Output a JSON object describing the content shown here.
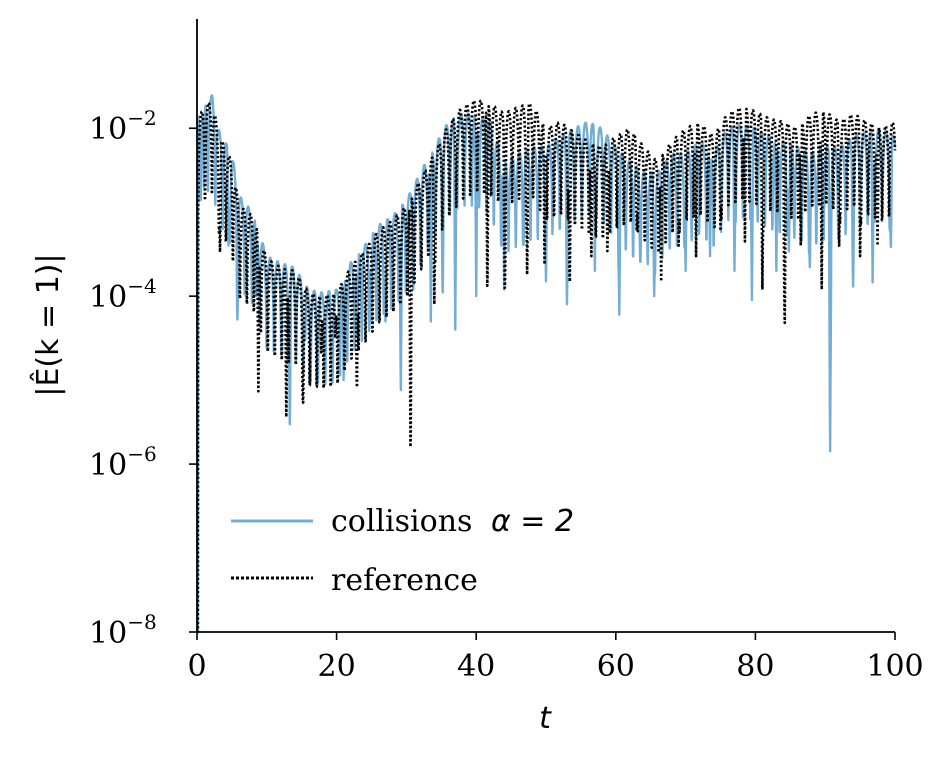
{
  "chart_data": {
    "type": "line",
    "xlabel": "t",
    "ylabel": "|Ê(k = 1)|",
    "xlim": [
      0,
      100
    ],
    "ylim": [
      1e-08,
      0.2
    ],
    "yscale": "log",
    "grid": false,
    "legend_position": "lower-left",
    "x_ticks": [
      0,
      20,
      40,
      60,
      80,
      100
    ],
    "x_tick_labels": [
      "0",
      "20",
      "40",
      "60",
      "80",
      "100"
    ],
    "y_ticks": [
      1e-08,
      1e-06,
      0.0001,
      0.01
    ],
    "y_tick_labels": [
      {
        "base": "10",
        "exp": "−8"
      },
      {
        "base": "10",
        "exp": "−6"
      },
      {
        "base": "10",
        "exp": "−4"
      },
      {
        "base": "10",
        "exp": "−2"
      }
    ],
    "series": [
      {
        "name": "collisions α = 2",
        "legend_text": "collisions",
        "legend_math": "α = 2",
        "color": "#74aed4",
        "style": "solid",
        "envelope_t": [
          0,
          1,
          2.2,
          3,
          4,
          5,
          6,
          8,
          10,
          12,
          14,
          16,
          18,
          20,
          22,
          24,
          26,
          28,
          30,
          32,
          34,
          36,
          38,
          40,
          42,
          44,
          46,
          48,
          50,
          52,
          54,
          56,
          58,
          60,
          62,
          64,
          66,
          68,
          70,
          72,
          74,
          76,
          78,
          80,
          82,
          84,
          86,
          88,
          90,
          92,
          94,
          96,
          98,
          100
        ],
        "envelope_max": [
          0.015,
          0.02,
          0.025,
          0.01,
          0.007,
          0.005,
          0.0016,
          0.001,
          0.0003,
          0.00025,
          0.00022,
          0.00012,
          0.00011,
          0.00012,
          0.00025,
          0.0004,
          0.0007,
          0.0009,
          0.0014,
          0.003,
          0.006,
          0.012,
          0.015,
          0.015,
          0.012,
          0.004,
          0.005,
          0.006,
          0.006,
          0.008,
          0.01,
          0.012,
          0.01,
          0.006,
          0.004,
          0.003,
          0.003,
          0.005,
          0.005,
          0.007,
          0.005,
          0.01,
          0.011,
          0.01,
          0.008,
          0.007,
          0.006,
          0.005,
          0.006,
          0.006,
          0.008,
          0.009,
          0.01,
          0.008
        ],
        "dips_t": [
          1,
          4.5,
          5.8,
          8.5,
          11,
          13.3,
          15.5,
          17.2,
          19.2,
          21,
          23,
          25,
          27,
          29.2,
          31,
          33.5,
          35.2,
          37,
          40,
          44,
          46.8,
          50,
          53,
          57,
          60.5,
          63.5,
          65.5,
          70,
          73.5,
          77,
          79.5,
          83,
          84.8,
          87.8,
          90.7,
          94,
          96.8,
          99.4
        ],
        "dips_y": [
          0.002,
          0.0004,
          5e-05,
          0.0001,
          8e-05,
          2.5e-06,
          3e-05,
          2e-05,
          1.5e-05,
          1e-05,
          3e-05,
          5e-05,
          5e-05,
          6e-06,
          0.00012,
          5e-05,
          0.0001,
          4e-05,
          0.0001,
          0.00012,
          0.0004,
          0.00015,
          8e-05,
          0.0002,
          6e-05,
          0.0003,
          0.0001,
          0.0002,
          0.0003,
          0.0002,
          9e-05,
          0.0002,
          0.0003,
          0.0002,
          1e-06,
          0.00013,
          0.00012,
          0.0003
        ]
      },
      {
        "name": "reference",
        "color": "#000000",
        "style": "dotted",
        "envelope_t": [
          0,
          1,
          2.2,
          3,
          4,
          5,
          6,
          8,
          10,
          12,
          14,
          16,
          18,
          20,
          22,
          24,
          26,
          28,
          30,
          32,
          34,
          36,
          38,
          40,
          42,
          44,
          46,
          48,
          50,
          52,
          54,
          56,
          58,
          60,
          62,
          64,
          66,
          68,
          70,
          72,
          74,
          76,
          78,
          80,
          82,
          84,
          86,
          88,
          90,
          92,
          94,
          96,
          98,
          100
        ],
        "envelope_max": [
          0.012,
          0.018,
          0.022,
          0.009,
          0.006,
          0.004,
          0.0012,
          0.0009,
          0.00028,
          0.00022,
          0.0002,
          0.00011,
          0.0001,
          0.00011,
          0.00022,
          0.00035,
          0.0006,
          0.0008,
          0.0012,
          0.0025,
          0.005,
          0.011,
          0.018,
          0.022,
          0.02,
          0.015,
          0.018,
          0.02,
          0.01,
          0.012,
          0.009,
          0.007,
          0.006,
          0.008,
          0.01,
          0.006,
          0.004,
          0.007,
          0.01,
          0.012,
          0.008,
          0.015,
          0.018,
          0.016,
          0.013,
          0.012,
          0.01,
          0.015,
          0.016,
          0.012,
          0.015,
          0.012,
          0.01,
          0.012
        ],
        "dips_t": [
          3.3,
          8.8,
          12.8,
          15.2,
          17.8,
          19.8,
          22.9,
          30.6,
          34,
          41.6,
          44.1,
          47.3,
          49.8,
          53.4,
          56.5,
          58.8,
          63,
          66.5,
          69,
          71.5,
          75,
          78.5,
          81,
          84.2,
          86.5,
          89.5,
          92,
          95,
          97.5
        ],
        "dips_y": [
          0.0003,
          6e-06,
          3e-06,
          5e-06,
          2e-05,
          3e-05,
          6e-06,
          8e-07,
          8e-05,
          8e-05,
          9e-05,
          0.00015,
          0.0002,
          0.0001,
          0.0003,
          0.0003,
          0.0006,
          0.00015,
          0.0004,
          0.0003,
          0.0006,
          0.00045,
          0.00012,
          4e-05,
          0.0004,
          0.00012,
          0.0004,
          0.0003,
          0.0004
        ]
      }
    ]
  }
}
